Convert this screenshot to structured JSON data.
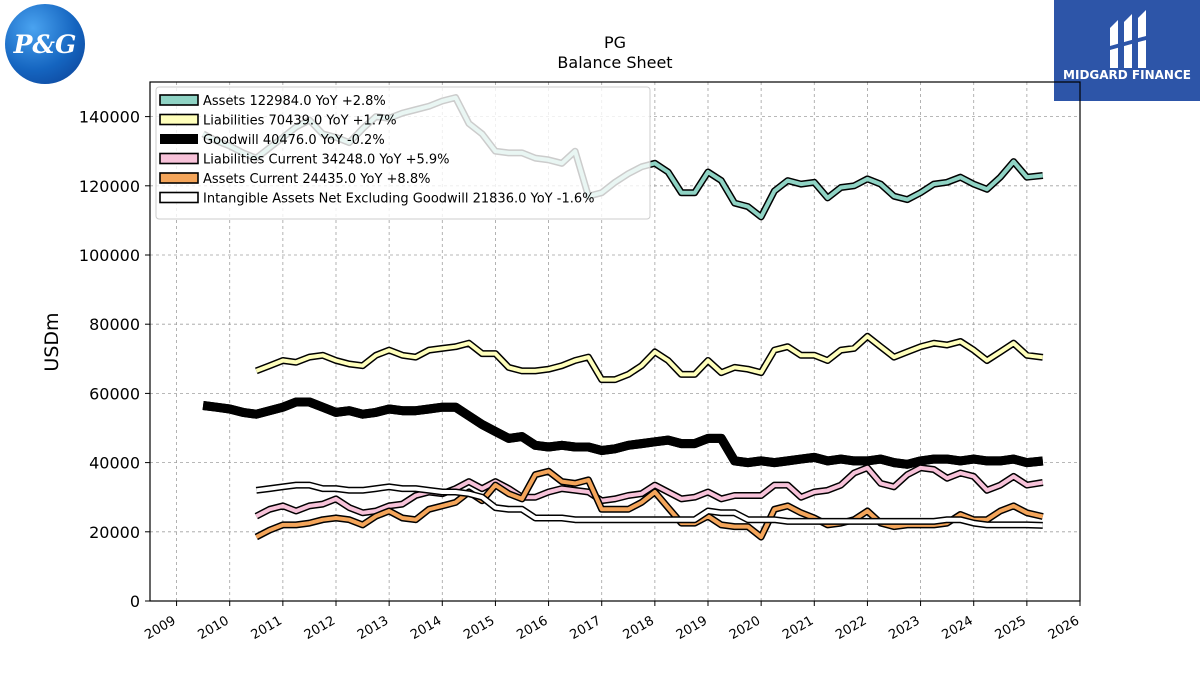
{
  "logos": {
    "left_text": "P&G",
    "right_brand": "MIDGARD FINANCE"
  },
  "chart_data": {
    "type": "line",
    "title": "PG",
    "subtitle": "Balance  Sheet",
    "xlabel": "",
    "ylabel": "USDm",
    "xlim": [
      2008.5,
      2026.0
    ],
    "ylim": [
      0,
      150000
    ],
    "xticks": [
      "2009",
      "2010",
      "2011",
      "2012",
      "2013",
      "2014",
      "2015",
      "2016",
      "2017",
      "2018",
      "2019",
      "2020",
      "2021",
      "2022",
      "2023",
      "2024",
      "2025",
      "2026"
    ],
    "yticks": [
      "0",
      "20000",
      "40000",
      "60000",
      "80000",
      "100000",
      "120000",
      "140000"
    ],
    "grid": true,
    "legend_position": "top-left",
    "series": [
      {
        "name": "Assets  122984.0 YoY +2.8%",
        "color": "#8fd3c4",
        "edge": "#000000",
        "width": "medium",
        "x": [
          2009.5,
          2009.75,
          2010.0,
          2010.25,
          2010.5,
          2010.75,
          2011.0,
          2011.25,
          2011.5,
          2011.75,
          2012.0,
          2012.25,
          2012.5,
          2012.75,
          2013.0,
          2013.25,
          2013.5,
          2013.75,
          2014.0,
          2014.25,
          2014.5,
          2014.75,
          2015.0,
          2015.25,
          2015.5,
          2015.75,
          2016.0,
          2016.25,
          2016.5,
          2016.75,
          2017.0,
          2017.25,
          2017.5,
          2017.75,
          2018.0,
          2018.25,
          2018.5,
          2018.75,
          2019.0,
          2019.25,
          2019.5,
          2019.75,
          2020.0,
          2020.25,
          2020.5,
          2020.75,
          2021.0,
          2021.25,
          2021.5,
          2021.75,
          2022.0,
          2022.25,
          2022.5,
          2022.75,
          2023.0,
          2023.25,
          2023.5,
          2023.75,
          2024.0,
          2024.25,
          2024.5,
          2024.75,
          2025.0,
          2025.3
        ],
        "values": [
          135000,
          133000,
          131500,
          129500,
          128000,
          131000,
          134000,
          137000,
          139000,
          135000,
          134000,
          132500,
          136500,
          140000,
          139500,
          141000,
          142000,
          143000,
          144500,
          145500,
          138000,
          135000,
          130000,
          129500,
          129500,
          128000,
          127500,
          126500,
          130000,
          117000,
          118000,
          121000,
          123500,
          125500,
          126500,
          124000,
          118000,
          118000,
          124000,
          121500,
          115000,
          114000,
          111000,
          118500,
          121500,
          120500,
          121000,
          116500,
          119500,
          120000,
          122000,
          120500,
          117000,
          116000,
          118000,
          120500,
          121000,
          122500,
          120500,
          119000,
          122500,
          127000,
          122500,
          122984
        ]
      },
      {
        "name": "Liabilities  70439.0 YoY +1.7%",
        "color": "#ffffbb",
        "edge": "#000000",
        "width": "medium",
        "x": [
          2010.5,
          2010.75,
          2011.0,
          2011.25,
          2011.5,
          2011.75,
          2012.0,
          2012.25,
          2012.5,
          2012.75,
          2013.0,
          2013.25,
          2013.5,
          2013.75,
          2014.0,
          2014.25,
          2014.5,
          2014.75,
          2015.0,
          2015.25,
          2015.5,
          2015.75,
          2016.0,
          2016.25,
          2016.5,
          2016.75,
          2017.0,
          2017.25,
          2017.5,
          2017.75,
          2018.0,
          2018.25,
          2018.5,
          2018.75,
          2019.0,
          2019.25,
          2019.5,
          2019.75,
          2020.0,
          2020.25,
          2020.5,
          2020.75,
          2021.0,
          2021.25,
          2021.5,
          2021.75,
          2022.0,
          2022.25,
          2022.5,
          2022.75,
          2023.0,
          2023.25,
          2023.5,
          2023.75,
          2024.0,
          2024.25,
          2024.5,
          2024.75,
          2025.0,
          2025.3
        ],
        "values": [
          66500,
          68000,
          69500,
          69000,
          70500,
          71000,
          69500,
          68500,
          68000,
          71000,
          72500,
          71000,
          70500,
          72500,
          73000,
          73500,
          74500,
          71500,
          71500,
          67500,
          66500,
          66500,
          67000,
          68000,
          69500,
          70500,
          64000,
          64000,
          65500,
          68000,
          72000,
          69500,
          65500,
          65500,
          69500,
          66000,
          67500,
          67000,
          66000,
          72500,
          73500,
          71000,
          71000,
          69500,
          72500,
          73000,
          76500,
          73500,
          70500,
          72000,
          73500,
          74500,
          74000,
          75000,
          72500,
          69500,
          72000,
          74500,
          71000,
          70439
        ]
      },
      {
        "name": "Goodwill  40476.0 YoY -0.2%",
        "color": "#000000",
        "edge": "#000000",
        "width": "thick",
        "x": [
          2009.5,
          2009.75,
          2010.0,
          2010.25,
          2010.5,
          2010.75,
          2011.0,
          2011.25,
          2011.5,
          2011.75,
          2012.0,
          2012.25,
          2012.5,
          2012.75,
          2013.0,
          2013.25,
          2013.5,
          2013.75,
          2014.0,
          2014.25,
          2014.5,
          2014.75,
          2015.0,
          2015.25,
          2015.5,
          2015.75,
          2016.0,
          2016.25,
          2016.5,
          2016.75,
          2017.0,
          2017.25,
          2017.5,
          2017.75,
          2018.0,
          2018.25,
          2018.5,
          2018.75,
          2019.0,
          2019.25,
          2019.5,
          2019.75,
          2020.0,
          2020.25,
          2020.5,
          2020.75,
          2021.0,
          2021.25,
          2021.5,
          2021.75,
          2022.0,
          2022.25,
          2022.5,
          2022.75,
          2023.0,
          2023.25,
          2023.5,
          2023.75,
          2024.0,
          2024.25,
          2024.5,
          2024.75,
          2025.0,
          2025.3
        ],
        "values": [
          56500,
          56000,
          55500,
          54500,
          54000,
          55000,
          56000,
          57500,
          57500,
          56000,
          54500,
          55000,
          54000,
          54500,
          55500,
          55000,
          55000,
          55500,
          56000,
          56000,
          53500,
          51000,
          49000,
          47000,
          47500,
          45000,
          44500,
          45000,
          44500,
          44500,
          43500,
          44000,
          45000,
          45500,
          46000,
          46500,
          45500,
          45500,
          47000,
          47000,
          40500,
          40000,
          40500,
          40000,
          40500,
          41000,
          41500,
          40500,
          41000,
          40500,
          40500,
          41000,
          40000,
          39500,
          40500,
          41000,
          41000,
          40500,
          41000,
          40500,
          40500,
          41000,
          40000,
          40476
        ]
      },
      {
        "name": "Liabilities Current  34248.0 YoY +5.9%",
        "color": "#f7c2d9",
        "edge": "#000000",
        "width": "medium",
        "x": [
          2010.5,
          2010.75,
          2011.0,
          2011.25,
          2011.5,
          2011.75,
          2012.0,
          2012.25,
          2012.5,
          2012.75,
          2013.0,
          2013.25,
          2013.5,
          2013.75,
          2014.0,
          2014.25,
          2014.5,
          2014.75,
          2015.0,
          2015.25,
          2015.5,
          2015.75,
          2016.0,
          2016.25,
          2016.5,
          2016.75,
          2017.0,
          2017.25,
          2017.5,
          2017.75,
          2018.0,
          2018.25,
          2018.5,
          2018.75,
          2019.0,
          2019.25,
          2019.5,
          2019.75,
          2020.0,
          2020.25,
          2020.5,
          2020.75,
          2021.0,
          2021.25,
          2021.5,
          2021.75,
          2022.0,
          2022.25,
          2022.5,
          2022.75,
          2023.0,
          2023.25,
          2023.5,
          2023.75,
          2024.0,
          2024.25,
          2024.5,
          2024.75,
          2025.0,
          2025.3
        ],
        "values": [
          24500,
          26500,
          27500,
          26000,
          27500,
          28000,
          29500,
          27000,
          25500,
          26000,
          27500,
          28000,
          30500,
          31500,
          31000,
          32500,
          34500,
          32500,
          34500,
          32500,
          30000,
          30000,
          31500,
          32500,
          32000,
          31500,
          29000,
          29500,
          30500,
          31000,
          33500,
          31500,
          29500,
          30000,
          31500,
          29500,
          30500,
          30500,
          30500,
          33500,
          33500,
          30000,
          31500,
          32000,
          33500,
          37000,
          38500,
          34000,
          33000,
          36500,
          38500,
          38000,
          35500,
          37000,
          36000,
          32000,
          33500,
          36000,
          33500,
          34248
        ]
      },
      {
        "name": "Assets Current  24435.0 YoY +8.8%",
        "color": "#f4a55a",
        "edge": "#000000",
        "width": "medium",
        "x": [
          2010.5,
          2010.75,
          2011.0,
          2011.25,
          2011.5,
          2011.75,
          2012.0,
          2012.25,
          2012.5,
          2012.75,
          2013.0,
          2013.25,
          2013.5,
          2013.75,
          2014.0,
          2014.25,
          2014.5,
          2014.75,
          2015.0,
          2015.25,
          2015.5,
          2015.75,
          2016.0,
          2016.25,
          2016.5,
          2016.75,
          2017.0,
          2017.25,
          2017.5,
          2017.75,
          2018.0,
          2018.25,
          2018.5,
          2018.75,
          2019.0,
          2019.25,
          2019.5,
          2019.75,
          2020.0,
          2020.25,
          2020.5,
          2020.75,
          2021.0,
          2021.25,
          2021.5,
          2021.75,
          2022.0,
          2022.25,
          2022.5,
          2022.75,
          2023.0,
          2023.25,
          2023.5,
          2023.75,
          2024.0,
          2024.25,
          2024.5,
          2024.75,
          2025.0,
          2025.3
        ],
        "values": [
          18500,
          20500,
          22000,
          22000,
          22500,
          23500,
          24000,
          23500,
          22000,
          24500,
          26000,
          24000,
          23500,
          26500,
          27500,
          28500,
          31500,
          29000,
          33500,
          31000,
          29500,
          36500,
          37500,
          34500,
          34000,
          35000,
          26500,
          26500,
          26500,
          28500,
          31500,
          27000,
          22500,
          22500,
          24500,
          22000,
          21500,
          21500,
          18500,
          26500,
          27500,
          25500,
          24000,
          22000,
          22500,
          23500,
          26000,
          22500,
          21500,
          22000,
          22000,
          22000,
          22500,
          25000,
          23500,
          23500,
          26000,
          27500,
          25500,
          24435
        ]
      },
      {
        "name": "Intangible Assets Net Excluding Goodwill  21836.0 YoY -1.6%",
        "color": "#ffffff",
        "edge": "#000000",
        "width": "medium",
        "x": [
          2010.5,
          2010.75,
          2011.0,
          2011.25,
          2011.5,
          2011.75,
          2012.0,
          2012.25,
          2012.5,
          2012.75,
          2013.0,
          2013.25,
          2013.5,
          2013.75,
          2014.0,
          2014.25,
          2014.5,
          2014.75,
          2015.0,
          2015.25,
          2015.5,
          2015.75,
          2016.0,
          2016.25,
          2016.5,
          2016.75,
          2017.0,
          2017.25,
          2017.5,
          2017.75,
          2018.0,
          2018.25,
          2018.5,
          2018.75,
          2019.0,
          2019.25,
          2019.5,
          2019.75,
          2020.0,
          2020.25,
          2020.5,
          2020.75,
          2021.0,
          2021.25,
          2021.5,
          2021.75,
          2022.0,
          2022.25,
          2022.5,
          2022.75,
          2023.0,
          2023.25,
          2023.5,
          2023.75,
          2024.0,
          2024.25,
          2024.5,
          2024.75,
          2025.0,
          2025.3
        ],
        "values": [
          32000,
          32500,
          33000,
          33500,
          33500,
          32500,
          32500,
          32000,
          32000,
          32500,
          33000,
          32500,
          32500,
          32000,
          31500,
          31500,
          31000,
          30000,
          27000,
          26500,
          26500,
          24000,
          24000,
          24000,
          23500,
          23500,
          23500,
          23500,
          23500,
          23500,
          23500,
          23500,
          23500,
          23500,
          26000,
          25500,
          25500,
          23500,
          23500,
          23500,
          23000,
          23000,
          23000,
          23000,
          23000,
          23000,
          23000,
          23000,
          23000,
          23000,
          23000,
          23000,
          23500,
          23500,
          22500,
          22000,
          22000,
          22000,
          22000,
          21836
        ]
      }
    ]
  }
}
